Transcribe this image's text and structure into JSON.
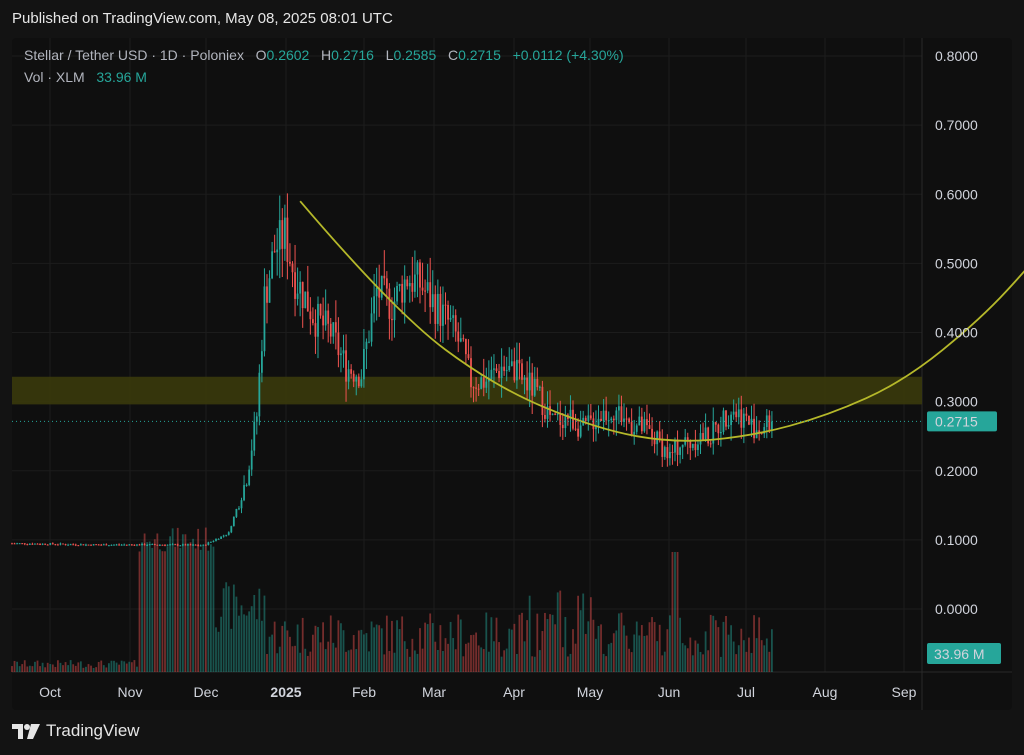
{
  "header": {
    "published": "Published on TradingView.com, May 08, 2025 08:01 UTC"
  },
  "legend": {
    "symbol": "Stellar / Tether USD · 1D · Poloniex",
    "o_label": "O",
    "o": "0.2602",
    "h_label": "H",
    "h": "0.2716",
    "l_label": "L",
    "l": "0.2585",
    "c_label": "C",
    "c": "0.2715",
    "change": "+0.0112 (+4.30%)",
    "vol_label": "Vol · XLM",
    "vol": "33.96 M"
  },
  "footer": {
    "brand": "TradingView"
  },
  "colors": {
    "up": "#26a69a",
    "down": "#ef5350",
    "curve": "#b5b82a",
    "zone": "#4a4a12",
    "bg": "#0f0f0f"
  },
  "chart_data": {
    "type": "candlestick",
    "x_ticks": [
      "Oct",
      "Nov",
      "Dec",
      "2025",
      "Feb",
      "Mar",
      "Apr",
      "May",
      "Jun",
      "Jul",
      "Aug",
      "Sep"
    ],
    "y_ticks": [
      "0.8000",
      "0.7000",
      "0.6000",
      "0.5000",
      "0.4000",
      "0.3000",
      "0.2000",
      "0.1000",
      "0.0000"
    ],
    "ylim": [
      -0.09,
      0.85
    ],
    "last_price": 0.2715,
    "last_price_label": "0.2715",
    "last_volume_label": "33.96 M",
    "resistance_zone": [
      0.296,
      0.336
    ],
    "price_path": [
      [
        0,
        0.095
      ],
      [
        30,
        0.093
      ],
      [
        60,
        0.093
      ],
      [
        75,
        0.092
      ],
      [
        85,
        0.11
      ],
      [
        92,
        0.19
      ],
      [
        96,
        0.28
      ],
      [
        99,
        0.45
      ],
      [
        103,
        0.52
      ],
      [
        107,
        0.54
      ],
      [
        111,
        0.48
      ],
      [
        115,
        0.45
      ],
      [
        119,
        0.42
      ],
      [
        125,
        0.4
      ],
      [
        131,
        0.35
      ],
      [
        137,
        0.34
      ],
      [
        143,
        0.46
      ],
      [
        149,
        0.44
      ],
      [
        155,
        0.48
      ],
      [
        160,
        0.47
      ],
      [
        166,
        0.44
      ],
      [
        172,
        0.41
      ],
      [
        176,
        0.38
      ],
      [
        180,
        0.33
      ],
      [
        186,
        0.33
      ],
      [
        192,
        0.35
      ],
      [
        198,
        0.34
      ],
      [
        204,
        0.32
      ],
      [
        208,
        0.3
      ],
      [
        212,
        0.27
      ],
      [
        218,
        0.28
      ],
      [
        224,
        0.26
      ],
      [
        230,
        0.28
      ],
      [
        236,
        0.29
      ],
      [
        242,
        0.27
      ],
      [
        248,
        0.26
      ],
      [
        254,
        0.24
      ],
      [
        258,
        0.22
      ],
      [
        262,
        0.24
      ],
      [
        266,
        0.24
      ],
      [
        270,
        0.25
      ],
      [
        274,
        0.25
      ],
      [
        278,
        0.27
      ],
      [
        282,
        0.29
      ],
      [
        286,
        0.28
      ],
      [
        290,
        0.265
      ],
      [
        294,
        0.26
      ],
      [
        298,
        0.2715
      ]
    ],
    "cup_curve": [
      [
        113,
        0.59
      ],
      [
        150,
        0.43
      ],
      [
        190,
        0.32
      ],
      [
        230,
        0.26
      ],
      [
        260,
        0.24
      ],
      [
        290,
        0.25
      ],
      [
        320,
        0.28
      ],
      [
        350,
        0.33
      ],
      [
        380,
        0.42
      ],
      [
        400,
        0.5
      ],
      [
        420,
        0.59
      ],
      [
        430,
        0.66
      ]
    ]
  }
}
